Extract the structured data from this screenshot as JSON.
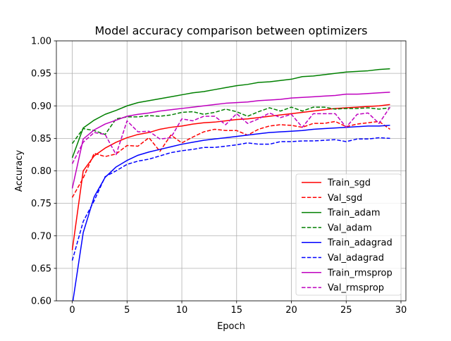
{
  "chart_data": {
    "type": "line",
    "title": "Model accuracy comparison between optimizers",
    "xlabel": "Epoch",
    "ylabel": "Accuracy",
    "xlim": [
      -1.45,
      30.45
    ],
    "ylim": [
      0.6,
      1.0
    ],
    "xticks": [
      0,
      5,
      10,
      15,
      20,
      25,
      30
    ],
    "xtick_labels": [
      "0",
      "5",
      "10",
      "15",
      "20",
      "25",
      "30"
    ],
    "yticks": [
      0.6,
      0.65,
      0.7,
      0.75,
      0.8,
      0.85,
      0.9,
      0.95,
      1.0
    ],
    "ytick_labels": [
      "0.60",
      "0.65",
      "0.70",
      "0.75",
      "0.80",
      "0.85",
      "0.90",
      "0.95",
      "1.00"
    ],
    "grid": true,
    "legend_position": "lower-right",
    "x": [
      0,
      1,
      2,
      3,
      4,
      5,
      6,
      7,
      8,
      9,
      10,
      11,
      12,
      13,
      14,
      15,
      16,
      17,
      18,
      19,
      20,
      21,
      22,
      23,
      24,
      25,
      26,
      27,
      28,
      29
    ],
    "series": [
      {
        "name": "Train_sgd",
        "color": "#ff0000",
        "dash": "solid",
        "values": [
          0.678,
          0.8,
          0.823,
          0.835,
          0.844,
          0.851,
          0.856,
          0.859,
          0.864,
          0.867,
          0.869,
          0.872,
          0.874,
          0.875,
          0.877,
          0.879,
          0.88,
          0.882,
          0.884,
          0.886,
          0.888,
          0.89,
          0.892,
          0.894,
          0.896,
          0.897,
          0.898,
          0.899,
          0.9,
          0.902
        ]
      },
      {
        "name": "Val_sgd",
        "color": "#ff0000",
        "dash": "dashed",
        "values": [
          0.759,
          0.789,
          0.827,
          0.822,
          0.826,
          0.839,
          0.838,
          0.851,
          0.83,
          0.855,
          0.843,
          0.852,
          0.86,
          0.864,
          0.862,
          0.862,
          0.855,
          0.864,
          0.869,
          0.871,
          0.87,
          0.867,
          0.873,
          0.873,
          0.876,
          0.868,
          0.872,
          0.874,
          0.876,
          0.864
        ]
      },
      {
        "name": "Train_adam",
        "color": "#008000",
        "dash": "solid",
        "values": [
          0.82,
          0.866,
          0.878,
          0.887,
          0.893,
          0.9,
          0.905,
          0.908,
          0.911,
          0.914,
          0.917,
          0.92,
          0.922,
          0.925,
          0.928,
          0.931,
          0.933,
          0.936,
          0.937,
          0.939,
          0.941,
          0.945,
          0.946,
          0.948,
          0.95,
          0.952,
          0.953,
          0.954,
          0.956,
          0.957
        ]
      },
      {
        "name": "Val_adam",
        "color": "#008000",
        "dash": "dashed",
        "values": [
          0.842,
          0.865,
          0.862,
          0.856,
          0.88,
          0.883,
          0.883,
          0.885,
          0.884,
          0.886,
          0.89,
          0.891,
          0.887,
          0.89,
          0.895,
          0.891,
          0.884,
          0.891,
          0.897,
          0.892,
          0.898,
          0.892,
          0.898,
          0.898,
          0.895,
          0.896,
          0.896,
          0.897,
          0.895,
          0.897
        ]
      },
      {
        "name": "Train_adagrad",
        "color": "#0000ff",
        "dash": "solid",
        "values": [
          0.593,
          0.705,
          0.76,
          0.79,
          0.806,
          0.816,
          0.824,
          0.829,
          0.833,
          0.837,
          0.841,
          0.844,
          0.847,
          0.849,
          0.851,
          0.853,
          0.855,
          0.857,
          0.859,
          0.86,
          0.861,
          0.862,
          0.864,
          0.865,
          0.866,
          0.867,
          0.868,
          0.869,
          0.869,
          0.87
        ]
      },
      {
        "name": "Val_adagrad",
        "color": "#0000ff",
        "dash": "dashed",
        "values": [
          0.662,
          0.722,
          0.754,
          0.791,
          0.8,
          0.81,
          0.815,
          0.818,
          0.823,
          0.828,
          0.831,
          0.833,
          0.836,
          0.836,
          0.838,
          0.84,
          0.843,
          0.841,
          0.841,
          0.845,
          0.845,
          0.846,
          0.846,
          0.847,
          0.848,
          0.845,
          0.849,
          0.849,
          0.851,
          0.85
        ]
      },
      {
        "name": "Train_rmsprop",
        "color": "#bf00bf",
        "dash": "solid",
        "values": [
          0.773,
          0.849,
          0.863,
          0.872,
          0.878,
          0.884,
          0.887,
          0.889,
          0.892,
          0.894,
          0.896,
          0.898,
          0.9,
          0.902,
          0.904,
          0.905,
          0.906,
          0.908,
          0.909,
          0.91,
          0.912,
          0.913,
          0.914,
          0.915,
          0.916,
          0.918,
          0.918,
          0.919,
          0.92,
          0.921
        ]
      },
      {
        "name": "Val_rmsprop",
        "color": "#bf00bf",
        "dash": "dashed",
        "values": [
          0.811,
          0.844,
          0.859,
          0.856,
          0.825,
          0.877,
          0.86,
          0.861,
          0.849,
          0.851,
          0.88,
          0.877,
          0.884,
          0.884,
          0.871,
          0.888,
          0.873,
          0.88,
          0.889,
          0.882,
          0.887,
          0.867,
          0.888,
          0.888,
          0.888,
          0.867,
          0.887,
          0.889,
          0.873,
          0.898
        ]
      }
    ]
  }
}
